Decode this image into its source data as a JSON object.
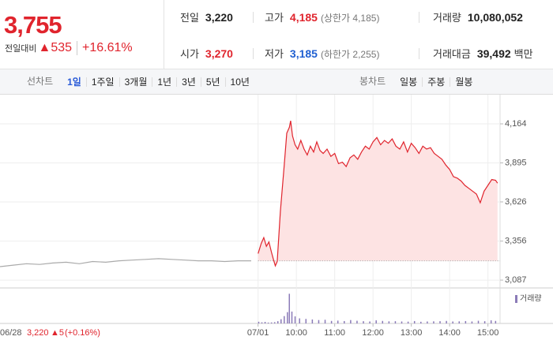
{
  "header": {
    "price": "3,755",
    "change_label": "전일대비",
    "change": "▲535",
    "rate": "+16.61%",
    "stats": [
      {
        "label": "전일",
        "value": "3,220"
      },
      {
        "label": "고가",
        "value": "4,185",
        "note": "(상한가 4,185)",
        "color": "#e0242d"
      },
      {
        "label": "거래량",
        "value": "10,080,052"
      },
      {
        "label": "시가",
        "value": "3,270",
        "color": "#e0242d"
      },
      {
        "label": "저가",
        "value": "3,185",
        "note": "(하한가 2,255)",
        "color": "#1f5fd1"
      },
      {
        "label": "거래대금",
        "value": "39,492",
        "unit": "백만"
      }
    ]
  },
  "tabs": {
    "line_tabs": {
      "label": "선차트",
      "items": [
        "1일",
        "1주일",
        "3개월",
        "1년",
        "3년",
        "5년",
        "10년"
      ],
      "active": 0
    },
    "candle_tabs": {
      "label": "봉차트",
      "items": [
        "일봉",
        "주봉",
        "월봉"
      ]
    }
  },
  "chart_data": {
    "type": "line",
    "ylim": [
      3033,
      4338
    ],
    "yticks": [
      {
        "value": 4164,
        "label": "4,164"
      },
      {
        "value": 3895,
        "label": "3,895"
      },
      {
        "value": 3626,
        "label": "3,626"
      },
      {
        "value": 3356,
        "label": "3,356"
      },
      {
        "value": 3087,
        "label": "3,087"
      }
    ],
    "xlim": [
      533,
      919
    ],
    "xticks": [
      {
        "value": 540,
        "label": "07/01"
      },
      {
        "value": 600,
        "label": "10:00"
      },
      {
        "value": 660,
        "label": "11:00"
      },
      {
        "value": 720,
        "label": "12:00"
      },
      {
        "value": 780,
        "label": "13:00"
      },
      {
        "value": 840,
        "label": "14:00"
      },
      {
        "value": 900,
        "label": "15:00"
      }
    ],
    "baseline": 3220,
    "grid": true,
    "series": [
      {
        "color": "#aaaaaa",
        "values": [
          3180,
          3190,
          3200,
          3195,
          3205,
          3210,
          3200,
          3215,
          3210,
          3220,
          3225,
          3230,
          3235,
          3230,
          3225,
          3220,
          3220,
          3215,
          3220,
          3220
        ]
      },
      {
        "color": "#e0242d",
        "fill": "#fde3e3",
        "x": [
          540,
          545,
          549,
          553,
          557,
          561,
          564,
          567,
          570,
          575,
          581,
          585,
          589,
          591,
          594,
          598,
          602,
          607,
          612,
          617,
          622,
          627,
          632,
          637,
          642,
          648,
          654,
          660,
          666,
          672,
          678,
          684,
          690,
          696,
          702,
          708,
          714,
          720,
          726,
          732,
          738,
          744,
          750,
          756,
          762,
          768,
          774,
          780,
          786,
          792,
          798,
          804,
          810,
          816,
          822,
          828,
          834,
          840,
          846,
          852,
          858,
          864,
          870,
          876,
          882,
          888,
          894,
          900,
          906,
          912,
          915
        ],
        "values": [
          3270,
          3340,
          3380,
          3320,
          3350,
          3280,
          3230,
          3185,
          3215,
          3560,
          3880,
          4100,
          4140,
          4185,
          4080,
          4020,
          3990,
          4050,
          3990,
          3950,
          4010,
          3970,
          4040,
          3980,
          3960,
          3990,
          3940,
          3960,
          3890,
          3900,
          3870,
          3930,
          3950,
          3920,
          3970,
          4010,
          3990,
          4040,
          4070,
          4020,
          4050,
          4030,
          4060,
          4010,
          3990,
          4040,
          3970,
          4030,
          4000,
          3960,
          4010,
          3990,
          4000,
          3960,
          3940,
          3920,
          3880,
          3850,
          3800,
          3790,
          3770,
          3740,
          3720,
          3700,
          3680,
          3620,
          3700,
          3740,
          3780,
          3775,
          3755
        ]
      }
    ],
    "volume": {
      "name": "거래량",
      "color": "#8b7bb8",
      "ylim": [
        0,
        1200000
      ],
      "x": [
        541,
        546,
        551,
        556,
        561,
        566,
        571,
        576,
        581,
        586,
        589,
        593,
        598,
        605,
        615,
        625,
        635,
        645,
        655,
        665,
        675,
        685,
        695,
        705,
        715,
        725,
        735,
        745,
        755,
        765,
        775,
        785,
        795,
        805,
        815,
        825,
        835,
        845,
        855,
        865,
        875,
        885,
        895,
        905,
        912
      ],
      "values": [
        60000,
        40000,
        55000,
        30000,
        35000,
        45000,
        80000,
        150000,
        260000,
        400000,
        1050000,
        420000,
        250000,
        180000,
        160000,
        140000,
        120000,
        130000,
        90000,
        100000,
        85000,
        120000,
        95000,
        80000,
        70000,
        110000,
        90000,
        75000,
        80000,
        70000,
        65000,
        85000,
        60000,
        70000,
        75000,
        80000,
        90000,
        70000,
        75000,
        85000,
        70000,
        95000,
        80000,
        110000,
        90000
      ]
    },
    "prior_day": {
      "date": "06/28",
      "close": "3,220",
      "change": "▲5",
      "rate": "(+0.16%)"
    }
  }
}
